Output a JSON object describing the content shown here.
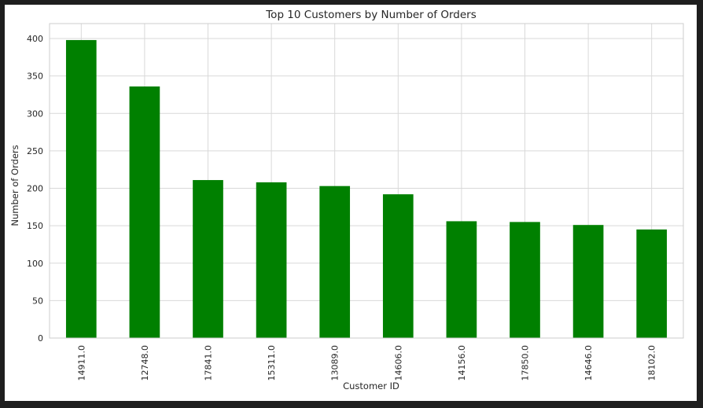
{
  "chart_data": {
    "type": "bar",
    "title": "Top 10 Customers by Number of Orders",
    "xlabel": "Customer ID",
    "ylabel": "Number of Orders",
    "categories": [
      "14911.0",
      "12748.0",
      "17841.0",
      "15311.0",
      "13089.0",
      "14606.0",
      "14156.0",
      "17850.0",
      "14646.0",
      "18102.0"
    ],
    "values": [
      398,
      336,
      211,
      208,
      203,
      192,
      156,
      155,
      151,
      145
    ],
    "ylim": [
      0,
      420
    ],
    "yticks": [
      0,
      50,
      100,
      150,
      200,
      250,
      300,
      350,
      400
    ],
    "grid": true,
    "bar_color": "#008000",
    "grid_color": "#d9d9d9",
    "spine_color": "#cccccc",
    "legend": false
  }
}
